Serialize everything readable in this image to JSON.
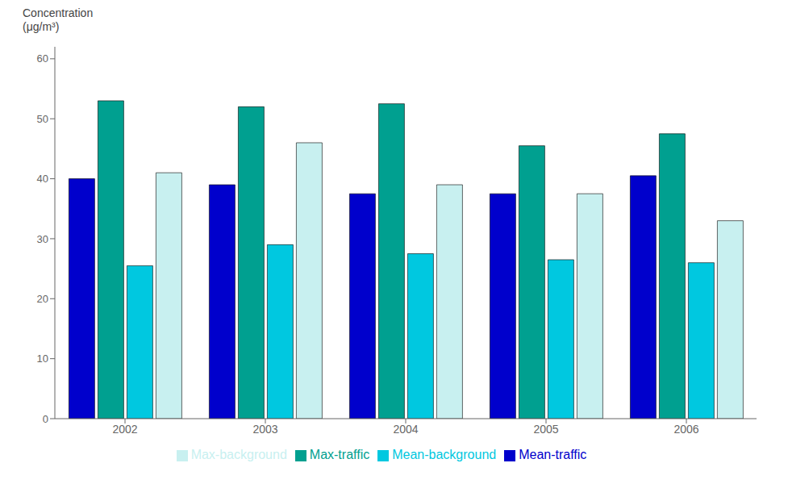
{
  "chart_data": {
    "type": "bar",
    "ylabel": "Concentration\n(μg/m³)",
    "categories": [
      "2002",
      "2003",
      "2004",
      "2005",
      "2006"
    ],
    "series": [
      {
        "name": "Mean-traffic",
        "color": "#0000cc",
        "values": [
          40.0,
          39.0,
          37.5,
          37.5,
          40.5
        ]
      },
      {
        "name": "Max-traffic",
        "color": "#00a090",
        "values": [
          53.0,
          52.0,
          52.5,
          45.5,
          47.5
        ]
      },
      {
        "name": "Mean-background",
        "color": "#00c8e0",
        "values": [
          25.5,
          29.0,
          27.5,
          26.5,
          26.0
        ]
      },
      {
        "name": "Max-background",
        "color": "#c8f0f0",
        "values": [
          41.0,
          46.0,
          39.0,
          37.5,
          33.0
        ]
      }
    ],
    "ylim": [
      0,
      62
    ],
    "yticks": [
      0,
      10,
      20,
      30,
      40,
      50,
      60
    ],
    "grid": false,
    "legend": "bottom"
  }
}
